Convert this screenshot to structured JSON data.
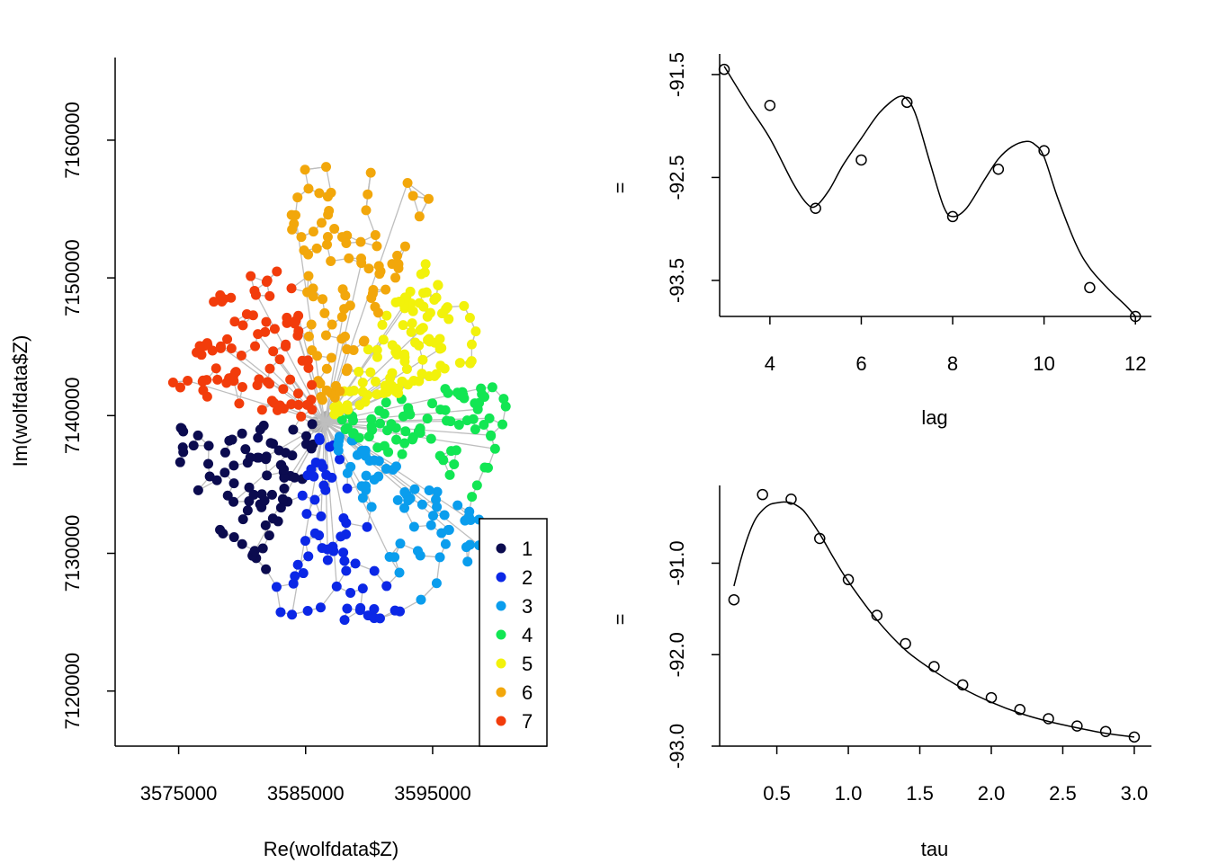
{
  "colors": {
    "cluster_palette": [
      "#0b0b4f",
      "#0b27e6",
      "#0a9ded",
      "#12e653",
      "#f2f20b",
      "#f2a70b",
      "#f23c0b"
    ],
    "edge_gray": "#bebebe",
    "center_gray": "#aaaaaa",
    "line_black": "#000000"
  },
  "chart_data": [
    {
      "type": "scatter",
      "title": "",
      "xlabel": "Re(wolfdata$Z)",
      "ylabel": "Im(wolfdata$Z)",
      "xlim": [
        3570000,
        3604000
      ],
      "ylim": [
        7116000,
        7166000
      ],
      "xticks": [
        3575000,
        3585000,
        3595000
      ],
      "xtick_labels": [
        "3575000",
        "3585000",
        "3595000"
      ],
      "yticks": [
        7120000,
        7130000,
        7140000,
        7150000,
        7160000
      ],
      "ytick_labels": [
        "7120000",
        "7130000",
        "7140000",
        "7150000",
        "7160000"
      ],
      "legend": {
        "placement": "bottom-right",
        "entries": [
          "1",
          "2",
          "3",
          "4",
          "5",
          "6",
          "7"
        ]
      },
      "network_center": [
        3586500,
        7139500
      ],
      "clusters": [
        {
          "name": "1",
          "angle_range_deg": [
            182,
            247
          ],
          "rmin": 900,
          "rmax": 12000,
          "n": 80
        },
        {
          "name": "2",
          "angle_range_deg": [
            249,
            294
          ],
          "rmin": 900,
          "rmax": 15000,
          "n": 62
        },
        {
          "name": "3",
          "angle_range_deg": [
            296,
            332
          ],
          "rmin": 900,
          "rmax": 15500,
          "n": 66
        },
        {
          "name": "4",
          "angle_range_deg": [
            335,
            377
          ],
          "rmin": 900,
          "rmax": 14500,
          "n": 80
        },
        {
          "name": "5",
          "angle_range_deg": [
            20,
            58
          ],
          "rmin": 900,
          "rmax": 14000,
          "n": 105
        },
        {
          "name": "6",
          "angle_range_deg": [
            62,
            102
          ],
          "rmin": 900,
          "rmax": 19000,
          "n": 92
        },
        {
          "name": "7",
          "angle_range_deg": [
            105,
            170
          ],
          "rmin": 900,
          "rmax": 12500,
          "n": 88
        }
      ]
    },
    {
      "type": "line",
      "title": "",
      "xlabel": "lag",
      "ylabel": "",
      "side_label": "=",
      "xlim": [
        2.9,
        12.35
      ],
      "ylim": [
        -93.85,
        -91.3
      ],
      "xticks": [
        4,
        6,
        8,
        10,
        12
      ],
      "xtick_labels": [
        "4",
        "6",
        "8",
        "10",
        "12"
      ],
      "yticks": [
        -93.5,
        -92.5,
        -91.5
      ],
      "ytick_labels": [
        "-93.5",
        "-92.5",
        "-91.5"
      ],
      "series": [
        {
          "values_x": [
            3,
            4,
            5,
            6,
            7,
            8,
            9,
            10,
            11,
            12
          ],
          "values_y": [
            -91.45,
            -91.8,
            -92.8,
            -92.33,
            -91.77,
            -92.88,
            -92.42,
            -92.24,
            -93.57,
            -93.85
          ]
        }
      ],
      "smooth_curve": {
        "x": [
          3,
          3.5,
          4,
          4.5,
          4.8,
          5,
          5.3,
          5.6,
          6,
          6.4,
          6.8,
          7,
          7.2,
          7.5,
          7.8,
          8,
          8.3,
          8.7,
          9,
          9.3,
          9.6,
          9.8,
          10,
          10.3,
          10.7,
          11,
          11.4,
          11.8,
          12
        ],
        "y": [
          -91.42,
          -91.78,
          -92.12,
          -92.55,
          -92.75,
          -92.78,
          -92.62,
          -92.38,
          -92.12,
          -91.87,
          -91.72,
          -91.74,
          -91.9,
          -92.35,
          -92.78,
          -92.88,
          -92.8,
          -92.52,
          -92.32,
          -92.2,
          -92.15,
          -92.18,
          -92.3,
          -92.7,
          -93.15,
          -93.38,
          -93.58,
          -93.75,
          -93.85
        ]
      }
    },
    {
      "type": "line",
      "title": "",
      "xlabel": "tau",
      "ylabel": "",
      "side_label": "=",
      "xlim": [
        0.1,
        3.12
      ],
      "ylim": [
        -93.0,
        -90.15
      ],
      "xticks": [
        0.5,
        1.0,
        1.5,
        2.0,
        2.5,
        3.0
      ],
      "xtick_labels": [
        "0.5",
        "1.0",
        "1.5",
        "2.0",
        "2.5",
        "3.0"
      ],
      "yticks": [
        -93.0,
        -92.0,
        -91.0
      ],
      "ytick_labels": [
        "-93.0",
        "-92.0",
        "-91.0"
      ],
      "series": [
        {
          "values_x": [
            0.2,
            0.4,
            0.6,
            0.8,
            1.0,
            1.2,
            1.4,
            1.6,
            1.8,
            2.0,
            2.2,
            2.4,
            2.6,
            2.8,
            3.0
          ],
          "values_y": [
            -91.4,
            -90.25,
            -90.3,
            -90.73,
            -91.18,
            -91.57,
            -91.88,
            -92.13,
            -92.33,
            -92.47,
            -92.6,
            -92.7,
            -92.78,
            -92.84,
            -92.9
          ]
        }
      ],
      "smooth_curve": {
        "x": [
          0.2,
          0.25,
          0.3,
          0.35,
          0.4,
          0.45,
          0.5,
          0.55,
          0.6,
          0.65,
          0.7,
          0.8,
          0.9,
          1.0,
          1.2,
          1.4,
          1.6,
          1.8,
          2.0,
          2.2,
          2.4,
          2.6,
          2.8,
          3.0
        ],
        "y": [
          -91.25,
          -90.95,
          -90.7,
          -90.52,
          -90.42,
          -90.36,
          -90.34,
          -90.33,
          -90.34,
          -90.38,
          -90.45,
          -90.68,
          -90.95,
          -91.2,
          -91.62,
          -91.95,
          -92.18,
          -92.37,
          -92.52,
          -92.64,
          -92.73,
          -92.8,
          -92.86,
          -92.9
        ]
      }
    }
  ]
}
